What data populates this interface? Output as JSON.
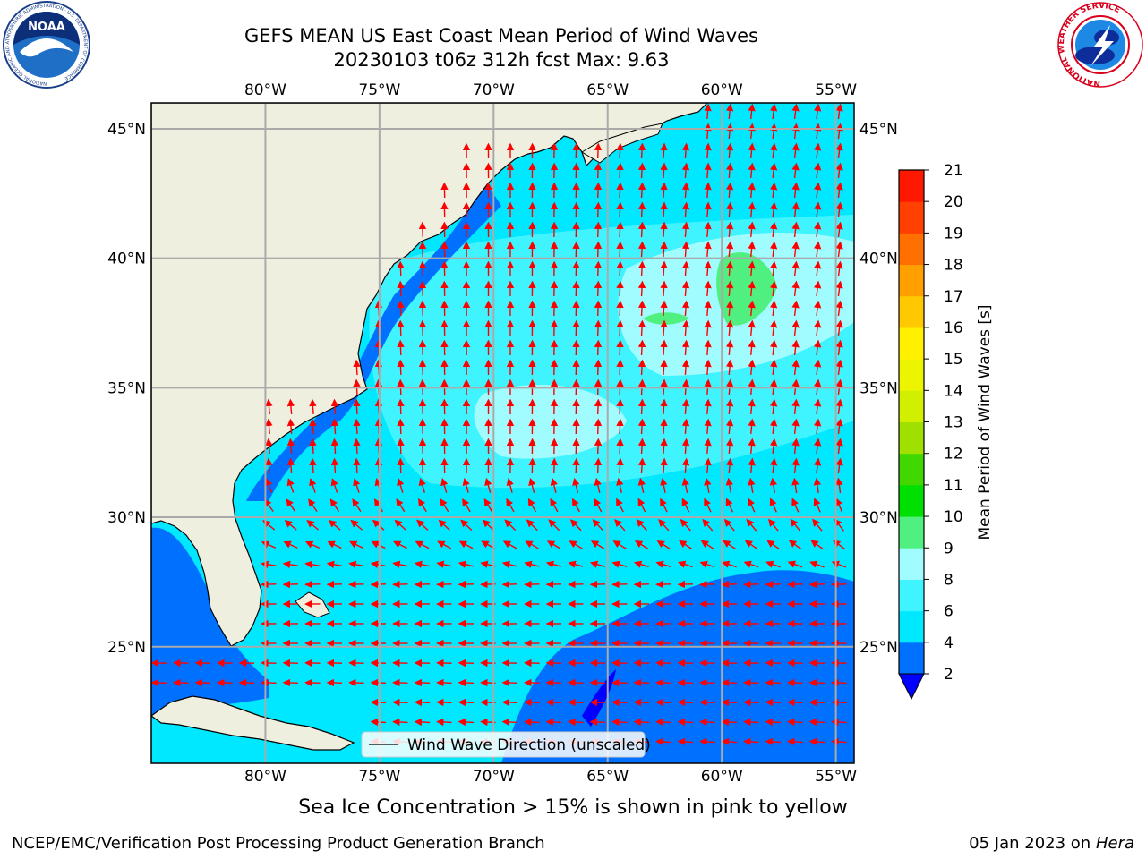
{
  "header": {
    "title_line1": "GEFS MEAN US East Coast Mean Period of Wind Waves",
    "title_line2": "20230103 t06z 312h fcst   Max: 9.63",
    "noaa_logo_text": "NOAA",
    "noaa_ring_text": "NATIONAL OCEANIC AND ATMOSPHERIC ADMINISTRATION · U.S. DEPARTMENT OF COMMERCE",
    "nws_ring_text": "NATIONAL WEATHER SERVICE"
  },
  "map": {
    "projection": "equirectangular",
    "lon_range": [
      -85,
      -54.2
    ],
    "lat_range": [
      20.5,
      46.0
    ],
    "lon_ticks": [
      "80°W",
      "75°W",
      "70°W",
      "65°W",
      "60°W",
      "55°W"
    ],
    "lat_ticks": [
      "45°N",
      "40°N",
      "35°N",
      "30°N",
      "25°N"
    ],
    "legend_label": "Wind Wave Direction (unscaled)",
    "colors": {
      "land": "#efefdf",
      "arrow": "#ff0000",
      "grid": "#aaaaaa",
      "coast": "#000000"
    }
  },
  "colorbar": {
    "label": "Mean Period of Wind Waves [s]",
    "levels": [
      2,
      4,
      6,
      8,
      9,
      10,
      11,
      12,
      13,
      14,
      15,
      16,
      17,
      18,
      19,
      20,
      21
    ],
    "tick_labels": [
      "2",
      "4",
      "6",
      "8",
      "9",
      "10",
      "11",
      "12",
      "13",
      "14",
      "15",
      "16",
      "17",
      "18",
      "19",
      "20",
      "21"
    ],
    "colors": [
      "#0070ff",
      "#00e8ff",
      "#40f4ff",
      "#a0fcff",
      "#50f080",
      "#00e000",
      "#40d800",
      "#a0e000",
      "#d0f000",
      "#ecf400",
      "#fff000",
      "#ffc800",
      "#ffa000",
      "#ff7000",
      "#ff4000",
      "#ff1800"
    ],
    "under_color": "#0000ff"
  },
  "chart_data": {
    "type": "heatmap",
    "variable": "Mean Period of Wind Waves [s]",
    "max": 9.63,
    "regions_approx": [
      {
        "area": "northern & central open ocean",
        "period_s": "6-8"
      },
      {
        "area": "Gulf Stream east of 65°W, 37-40°N",
        "period_s": "8-9.63"
      },
      {
        "area": "southeast of 65°W, 20-27°N",
        "period_s": "2-4"
      },
      {
        "area": "Gulf of Mexico / Florida shelf",
        "period_s": "2-4"
      }
    ],
    "wind_wave_direction": "northward in the north, westward in the south"
  },
  "notes": {
    "sea_ice": "Sea Ice Concentration > 15% is shown in pink to yellow"
  },
  "footer": {
    "left": "NCEP/EMC/Verification Post Processing Product Generation Branch",
    "date": "05 Jan 2023 on ",
    "machine": "Hera"
  }
}
